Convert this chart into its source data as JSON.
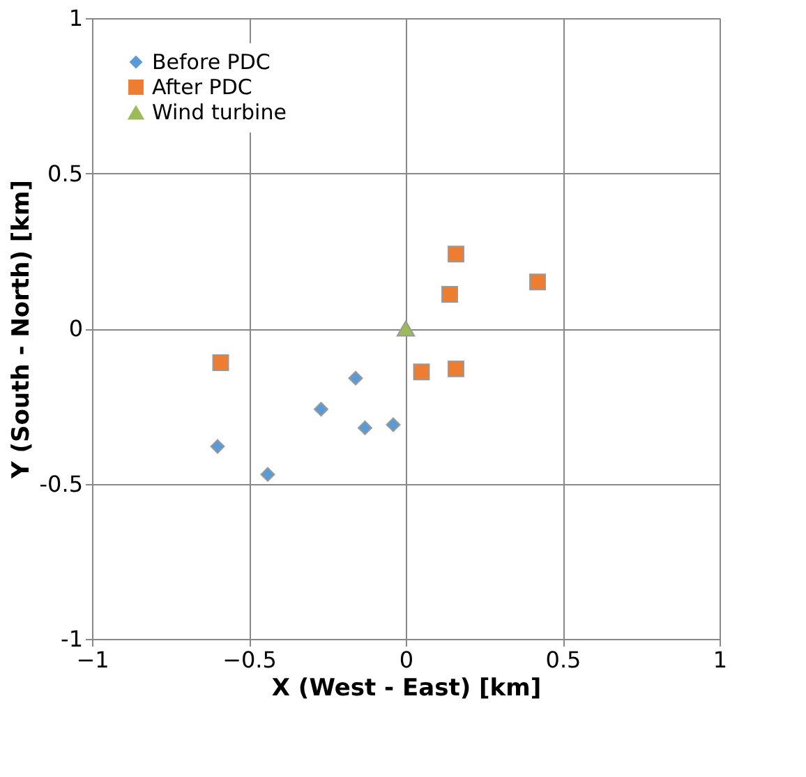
{
  "chart_data": {
    "type": "scatter",
    "xlabel": "X (West - East) [km]",
    "ylabel": "Y (South - North) [km]",
    "xlim": [
      -1,
      1
    ],
    "ylim": [
      -1,
      1
    ],
    "xticks": [
      {
        "value": -1,
        "label": "−1"
      },
      {
        "value": -0.5,
        "label": "−0.5"
      },
      0,
      0.5,
      1
    ],
    "yticks": [
      -1,
      -0.5,
      0,
      0.5,
      1
    ],
    "grid": true,
    "legend": "top left",
    "series": [
      {
        "name": "Before PDC",
        "color": "#5b9bd5",
        "marker": "diamond",
        "x": [
          -0.6,
          -0.44,
          -0.27,
          -0.16,
          -0.13,
          -0.04
        ],
        "values": [
          -0.38,
          -0.47,
          -0.26,
          -0.16,
          -0.32,
          -0.31
        ]
      },
      {
        "name": "After PDC",
        "color": "#ed7d31",
        "marker": "square",
        "x": [
          -0.59,
          0.05,
          0.16,
          0.14,
          0.16,
          0.42
        ],
        "values": [
          -0.11,
          -0.14,
          0.24,
          0.11,
          -0.13,
          0.15
        ]
      },
      {
        "name": "Wind turbine",
        "color": "#9bbb59",
        "marker": "triangle",
        "x": [
          0
        ],
        "values": [
          0
        ]
      }
    ]
  }
}
